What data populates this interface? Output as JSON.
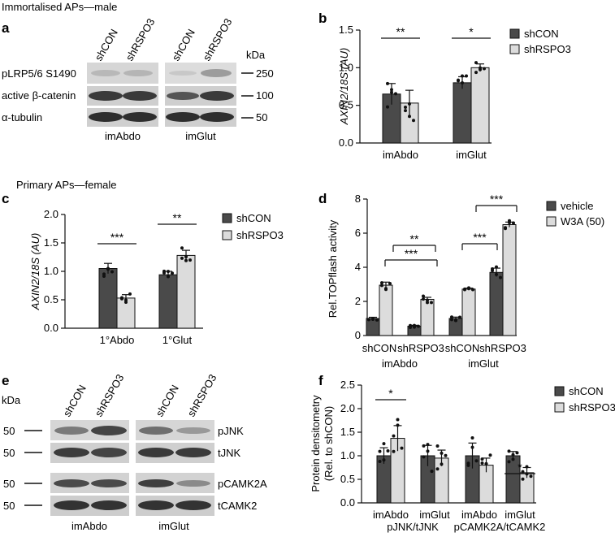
{
  "panel_labels": {
    "a": "a",
    "b": "b",
    "c": "c",
    "d": "d",
    "e": "e",
    "f": "f"
  },
  "headers": {
    "immortalised_male": "Immortalised APs—male",
    "primary_female": "Primary APs—female"
  },
  "blot_a": {
    "lanes": [
      "shCON",
      "shRSPO3",
      "shCON",
      "shRSPO3"
    ],
    "kda_label": "kDa",
    "rows": [
      {
        "label": "pLRP5/6 S1490",
        "kda": "250"
      },
      {
        "label": "active β-catenin",
        "kda": "100"
      },
      {
        "label": "α-tubulin",
        "kda": "50"
      }
    ],
    "groups": [
      "imAbdo",
      "imGlut"
    ]
  },
  "blot_e": {
    "lanes": [
      "shCON",
      "shRSPO3",
      "shCON",
      "shRSPO3"
    ],
    "kda_label": "kDa",
    "rows": [
      {
        "label": "pJNK",
        "kda": "50"
      },
      {
        "label": "tJNK",
        "kda": "50"
      },
      {
        "label": "pCAMK2A",
        "kda": "50"
      },
      {
        "label": "tCAMK2",
        "kda": "50"
      }
    ],
    "groups": [
      "imAbdo",
      "imGlut"
    ]
  },
  "chart_data": [
    {
      "panel": "b",
      "type": "bar",
      "ylabel": "AXIN2/18S (AU)",
      "ylim": [
        0,
        1.5
      ],
      "yticks": [
        "0.0",
        "0.5",
        "1.0",
        "1.5"
      ],
      "categories": [
        "imAbdo",
        "imGlut"
      ],
      "series": [
        {
          "name": "shCON",
          "values": [
            0.65,
            0.8
          ],
          "errors": [
            0.14,
            0.08
          ],
          "color": "#4a4a4a"
        },
        {
          "name": "shRSPO3",
          "values": [
            0.53,
            1.0
          ],
          "errors": [
            0.17,
            0.05
          ],
          "color": "#dcdcdc"
        }
      ],
      "significance": [
        "**",
        "*"
      ],
      "legend": "top-right"
    },
    {
      "panel": "c",
      "type": "bar",
      "ylabel": "AXIN2/18S (AU)",
      "ylim": [
        0,
        2.0
      ],
      "yticks": [
        "0.0",
        "0.5",
        "1.0",
        "1.5",
        "2.0"
      ],
      "categories": [
        "1°Abdo",
        "1°Glut"
      ],
      "series": [
        {
          "name": "shCON",
          "values": [
            1.05,
            0.94
          ],
          "errors": [
            0.09,
            0.06
          ],
          "color": "#4a4a4a"
        },
        {
          "name": "shRSPO3",
          "values": [
            0.53,
            1.28
          ],
          "errors": [
            0.06,
            0.09
          ],
          "color": "#dcdcdc"
        }
      ],
      "significance": [
        "***",
        "**"
      ],
      "legend": "top-right"
    },
    {
      "panel": "d",
      "type": "bar",
      "ylabel": "Rel.TOPflash activity",
      "ylim": [
        0,
        8
      ],
      "yticks": [
        "0",
        "2",
        "4",
        "6",
        "8"
      ],
      "categories": [
        "shCON",
        "shRSPO3",
        "shCON",
        "shRSPO3"
      ],
      "groups": [
        "imAbdo",
        "imGlut"
      ],
      "series": [
        {
          "name": "vehicle",
          "values": [
            1.0,
            0.55,
            1.0,
            3.7
          ],
          "errors": [
            0.07,
            0.05,
            0.08,
            0.25
          ],
          "color": "#4a4a4a"
        },
        {
          "name": "W3A (50)",
          "values": [
            2.95,
            2.12,
            2.72,
            6.5
          ],
          "errors": [
            0.18,
            0.12,
            0.06,
            0.15
          ],
          "color": "#dcdcdc"
        }
      ],
      "significance": [
        "***",
        "**",
        "***",
        "***"
      ],
      "legend": "top-right"
    },
    {
      "panel": "f",
      "type": "bar",
      "ylabel": "Protein densitometry",
      "ylabel2": "(Rel. to shCON)",
      "ylim": [
        0,
        2.5
      ],
      "yticks": [
        "0.0",
        "0.5",
        "1.0",
        "1.5",
        "2.0",
        "2.5"
      ],
      "categories": [
        "imAbdo",
        "imGlut",
        "imAbdo",
        "imGlut"
      ],
      "groups": [
        "pJNK/tJNK",
        "pCAMK2A/tCAMK2"
      ],
      "series": [
        {
          "name": "shCON",
          "values": [
            1.0,
            1.0,
            1.0,
            1.0
          ],
          "errors": [
            0.17,
            0.22,
            0.27,
            0.09
          ],
          "color": "#4a4a4a"
        },
        {
          "name": "shRSPO3",
          "values": [
            1.37,
            0.95,
            0.8,
            0.64
          ],
          "errors": [
            0.27,
            0.17,
            0.15,
            0.11
          ],
          "color": "#dcdcdc"
        }
      ],
      "significance": [
        "*",
        "*"
      ],
      "legend": "top-right"
    }
  ]
}
